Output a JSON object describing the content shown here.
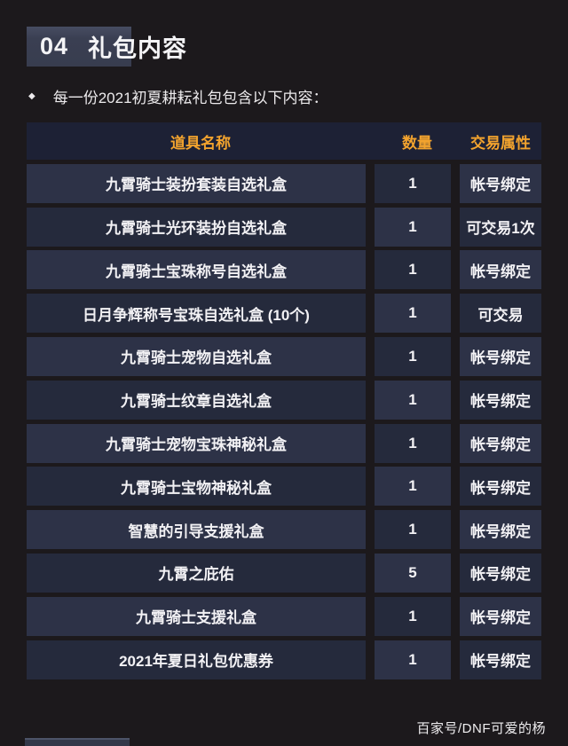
{
  "page": {
    "section_number": "04",
    "section_title": "礼包内容",
    "bullet_icon": "◆",
    "bullet_text": "每一份2021初夏耕耘礼包包含以下内容：",
    "footer_credit": "百家号/DNF可爱的杨"
  },
  "table": {
    "columns": [
      "道具名称",
      "数量",
      "交易属性"
    ],
    "rows": [
      {
        "name": "九霄骑士装扮套装自选礼盒",
        "qty": "1",
        "trade": "帐号绑定"
      },
      {
        "name": "九霄骑士光环装扮自选礼盒",
        "qty": "1",
        "trade": "可交易1次"
      },
      {
        "name": "九霄骑士宝珠称号自选礼盒",
        "qty": "1",
        "trade": "帐号绑定"
      },
      {
        "name": "日月争辉称号宝珠自选礼盒 (10个)",
        "qty": "1",
        "trade": "可交易"
      },
      {
        "name": "九霄骑士宠物自选礼盒",
        "qty": "1",
        "trade": "帐号绑定"
      },
      {
        "name": "九霄骑士纹章自选礼盒",
        "qty": "1",
        "trade": "帐号绑定"
      },
      {
        "name": "九霄骑士宠物宝珠神秘礼盒",
        "qty": "1",
        "trade": "帐号绑定"
      },
      {
        "name": "九霄骑士宝物神秘礼盒",
        "qty": "1",
        "trade": "帐号绑定"
      },
      {
        "name": "智慧的引导支援礼盒",
        "qty": "1",
        "trade": "帐号绑定"
      },
      {
        "name": "九霄之庇佑",
        "qty": "5",
        "trade": "帐号绑定"
      },
      {
        "name": "九霄骑士支援礼盒",
        "qty": "1",
        "trade": "帐号绑定"
      },
      {
        "name": "2021年夏日礼包优惠券",
        "qty": "1",
        "trade": "帐号绑定"
      }
    ]
  },
  "colors": {
    "page_bg": "#1c191c",
    "accent_orange": "#f2a32e",
    "table_header_bg": "#1d2135",
    "cell_light": "#2d3247",
    "cell_dark": "#252a3c",
    "section_box_bg": "#3a3f52"
  }
}
